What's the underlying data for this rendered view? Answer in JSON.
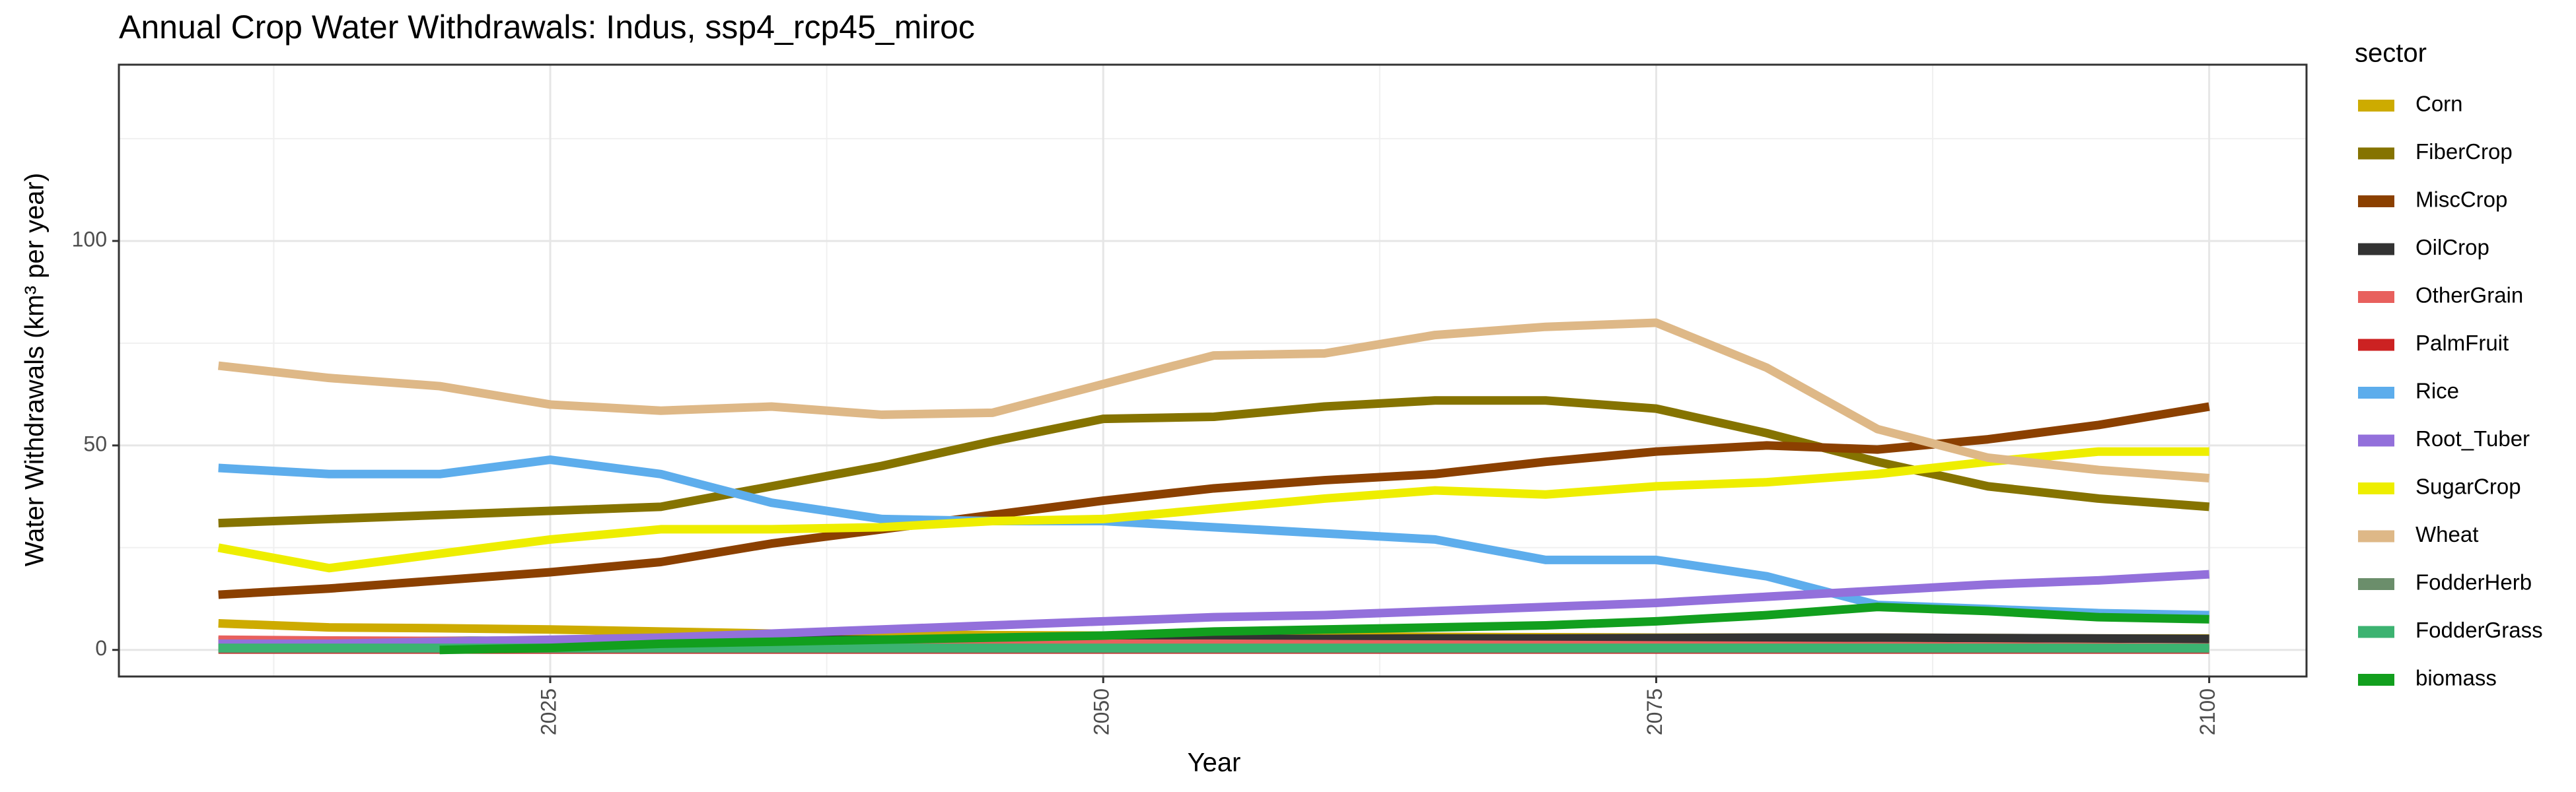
{
  "chart_data": {
    "type": "line",
    "title": "Annual Crop Water Withdrawals: Indus, ssp4_rcp45_miroc",
    "xlabel": "Year",
    "ylabel": "Water Withdrawals (km³ per year)",
    "legend_title": "sector",
    "x": [
      2010,
      2015,
      2020,
      2025,
      2030,
      2035,
      2040,
      2045,
      2050,
      2055,
      2060,
      2065,
      2070,
      2075,
      2080,
      2085,
      2090,
      2095,
      2100
    ],
    "xlim": [
      2005.5,
      2104.4
    ],
    "xticks": [
      2025,
      2050,
      2075,
      2100
    ],
    "ylim": [
      -6.5,
      143.1
    ],
    "yticks": [
      0,
      50,
      100
    ],
    "grid": true,
    "legend": "right",
    "series": [
      {
        "name": "Corn",
        "color": "#cdab00",
        "values": [
          6.5,
          5.5,
          5.3,
          5,
          4.5,
          4,
          3.8,
          3.6,
          3.5,
          3.4,
          3.3,
          3.2,
          3.1,
          3,
          3,
          3,
          2.9,
          2.8,
          2.8
        ]
      },
      {
        "name": "FiberCrop",
        "color": "#857300",
        "values": [
          31,
          32,
          33,
          34,
          35,
          40,
          45,
          51,
          56.5,
          57,
          59.5,
          61,
          61,
          59,
          53,
          46,
          40,
          37,
          35
        ]
      },
      {
        "name": "MiscCrop",
        "color": "#8b4000",
        "values": [
          13.5,
          15,
          17,
          19,
          21.5,
          26,
          29.5,
          33,
          36.5,
          39.5,
          41.5,
          43,
          46,
          48.5,
          50,
          49,
          51.5,
          55,
          59.5
        ]
      },
      {
        "name": "OilCrop",
        "color": "#333333",
        "values": [
          2.2,
          2.2,
          2.2,
          2.3,
          2.4,
          2.5,
          2.5,
          2.6,
          2.6,
          2.7,
          2.7,
          2.8,
          2.8,
          2.9,
          3,
          3,
          2.9,
          2.8,
          2.7
        ]
      },
      {
        "name": "OtherGrain",
        "color": "#e8605d",
        "values": [
          2.5,
          2.3,
          2.2,
          2,
          2,
          1.8,
          1.7,
          1.6,
          1.5,
          1.5,
          1.4,
          1.3,
          1.2,
          1.1,
          1,
          0.9,
          0.8,
          0.7,
          0.6
        ]
      },
      {
        "name": "PalmFruit",
        "color": "#cc2222",
        "values": [
          0.1,
          0.1,
          0.1,
          0.1,
          0.1,
          0.1,
          0.1,
          0.1,
          0.1,
          0.1,
          0.1,
          0.1,
          0.1,
          0.1,
          0.1,
          0.1,
          0.1,
          0.1,
          0.1
        ]
      },
      {
        "name": "Rice",
        "color": "#5dadec",
        "values": [
          44.5,
          43,
          43,
          46.5,
          43,
          36,
          32,
          31.5,
          31.5,
          30,
          28.5,
          27,
          22,
          22,
          18,
          11,
          10,
          9,
          8.5
        ]
      },
      {
        "name": "Root_Tuber",
        "color": "#9370db",
        "values": [
          1.5,
          1.5,
          2,
          2.5,
          3,
          4,
          5,
          6,
          7,
          8,
          8.5,
          9.5,
          10.5,
          11.5,
          13,
          14.5,
          16,
          17,
          18.5
        ]
      },
      {
        "name": "SugarCrop",
        "color": "#eeee00",
        "values": [
          25,
          20,
          23.5,
          27,
          29.5,
          29.5,
          30,
          31.5,
          32,
          34.5,
          37,
          39,
          38,
          40,
          41,
          43,
          46,
          48.5,
          48.5
        ]
      },
      {
        "name": "Wheat",
        "color": "#deb887",
        "values": [
          69.5,
          66.5,
          64.5,
          60,
          58.5,
          59.5,
          57.5,
          58,
          65,
          72,
          72.5,
          77,
          79,
          80,
          69,
          54,
          47,
          44,
          42
        ]
      },
      {
        "name": "FodderHerb",
        "color": "#6b8e6b",
        "values": [
          0.3,
          0.3,
          0.3,
          0.3,
          0.3,
          0.3,
          0.3,
          0.3,
          0.3,
          0.3,
          0.3,
          0.3,
          0.3,
          0.3,
          0.3,
          0.3,
          0.3,
          0.3,
          0.3
        ]
      },
      {
        "name": "FodderGrass",
        "color": "#3cb371",
        "values": [
          0.5,
          0.5,
          0.5,
          0.5,
          0.5,
          0.5,
          0.5,
          0.5,
          0.5,
          0.5,
          0.5,
          0.5,
          0.5,
          0.5,
          0.5,
          0.5,
          0.5,
          0.5,
          0.5
        ]
      },
      {
        "name": "biomass",
        "color": "#129f1e",
        "values": [
          null,
          null,
          0,
          0.5,
          1.5,
          2,
          2.5,
          3,
          3.5,
          4.5,
          5,
          5.5,
          6,
          7,
          8.5,
          10.5,
          9.5,
          8,
          7.5
        ]
      }
    ]
  }
}
